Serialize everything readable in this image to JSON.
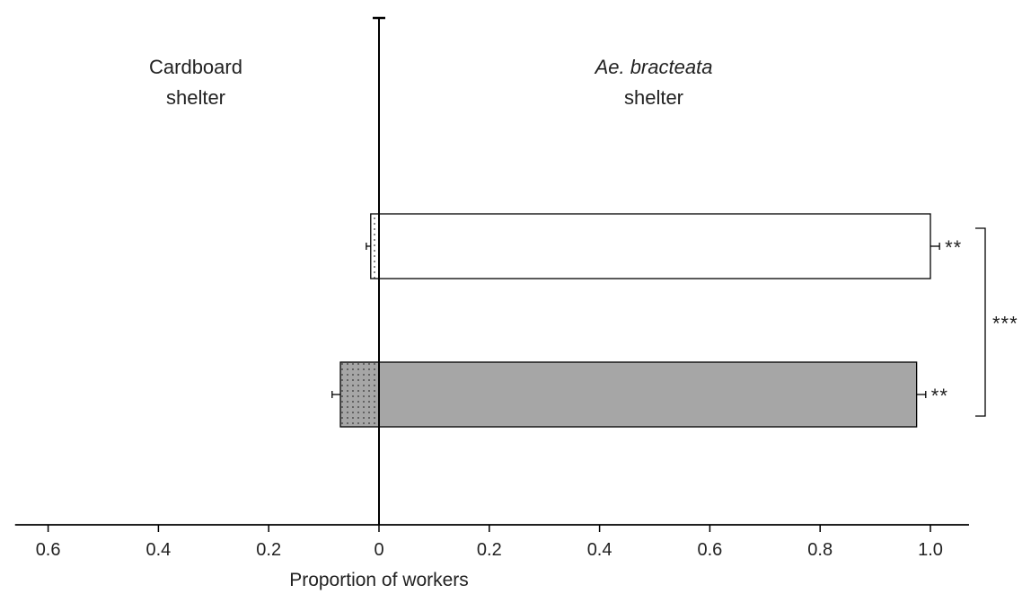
{
  "chart_data": {
    "type": "bar",
    "orientation": "horizontal",
    "title": "",
    "xlabel": "Proportion of workers",
    "ylabel": "",
    "group_labels": {
      "left": [
        "Cardboard",
        "shelter"
      ],
      "right_italic": "Ae. bracteata",
      "right": "shelter"
    },
    "x_ticks": [
      {
        "value": -0.6,
        "label": "0.6"
      },
      {
        "value": -0.4,
        "label": "0.4"
      },
      {
        "value": -0.2,
        "label": "0.2"
      },
      {
        "value": 0,
        "label": "0"
      },
      {
        "value": 0.2,
        "label": "0.2"
      },
      {
        "value": 0.4,
        "label": "0.4"
      },
      {
        "value": 0.6,
        "label": "0.6"
      },
      {
        "value": 0.8,
        "label": "0.8"
      },
      {
        "value": 1.0,
        "label": "1.0"
      }
    ],
    "xlim": [
      -0.66,
      1.07
    ],
    "bars": [
      {
        "color": "#ffffff",
        "left_value": 0.015,
        "left_pattern": "dots",
        "left_error": 0.008,
        "right_value": 1.0,
        "right_error": 0.01,
        "significance": "**"
      },
      {
        "color": "#a6a6a6",
        "left_value": 0.07,
        "left_pattern": "dots",
        "left_error": 0.015,
        "right_value": 0.975,
        "right_error": 0.01,
        "significance": "**"
      }
    ],
    "comparison_significance": "***",
    "colors": {
      "white_bar": "#ffffff",
      "grey_bar": "#a6a6a6",
      "axis": "#000000"
    }
  }
}
